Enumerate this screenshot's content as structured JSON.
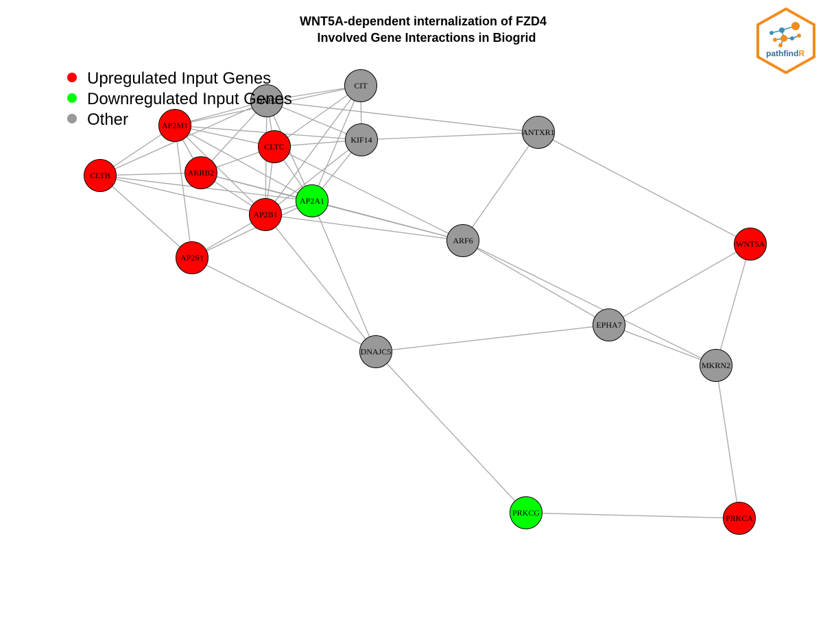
{
  "title": {
    "line1": "WNT5A-dependent internalization of FZD4",
    "line2": "Involved Gene Interactions in Biogrid"
  },
  "legend": [
    {
      "label": "Upregulated Input Genes",
      "color": "#ff0000"
    },
    {
      "label": "Downregulated Input Genes",
      "color": "#00ff00"
    },
    {
      "label": "Other",
      "color": "#999999"
    }
  ],
  "logo": {
    "text_main": "pathfind",
    "text_accent": "R",
    "accent_color": "#f28c1c",
    "main_color": "#2a6f97"
  },
  "colors": {
    "up": "#ff0000",
    "down": "#00ff00",
    "other": "#999999",
    "edge": "#a6a6a6"
  },
  "nodes": [
    {
      "id": "CIT",
      "type": "other"
    },
    {
      "id": "DAB2",
      "type": "other"
    },
    {
      "id": "AP2M1",
      "type": "up"
    },
    {
      "id": "CLTC",
      "type": "up"
    },
    {
      "id": "KIF14",
      "type": "other"
    },
    {
      "id": "ANTXR1",
      "type": "other"
    },
    {
      "id": "CLTB",
      "type": "up"
    },
    {
      "id": "ARRB2",
      "type": "up"
    },
    {
      "id": "AP2A1",
      "type": "down"
    },
    {
      "id": "AP2B1",
      "type": "up"
    },
    {
      "id": "ARF6",
      "type": "other"
    },
    {
      "id": "AP2S1",
      "type": "up"
    },
    {
      "id": "WNT5A",
      "type": "up"
    },
    {
      "id": "EPHA7",
      "type": "other"
    },
    {
      "id": "DNAJC5",
      "type": "other"
    },
    {
      "id": "MKRN2",
      "type": "other"
    },
    {
      "id": "PRKCG",
      "type": "down"
    },
    {
      "id": "PRKCA",
      "type": "up"
    }
  ],
  "edges": [
    [
      "CIT",
      "DAB2"
    ],
    [
      "CIT",
      "AP2M1"
    ],
    [
      "CIT",
      "CLTC"
    ],
    [
      "CIT",
      "KIF14"
    ],
    [
      "CIT",
      "AP2A1"
    ],
    [
      "CIT",
      "AP2B1"
    ],
    [
      "DAB2",
      "AP2M1"
    ],
    [
      "DAB2",
      "CLTB"
    ],
    [
      "DAB2",
      "ARRB2"
    ],
    [
      "DAB2",
      "CLTC"
    ],
    [
      "DAB2",
      "AP2A1"
    ],
    [
      "DAB2",
      "AP2B1"
    ],
    [
      "DAB2",
      "ANTXR1"
    ],
    [
      "DAB2",
      "KIF14"
    ],
    [
      "AP2M1",
      "CLTC"
    ],
    [
      "AP2M1",
      "KIF14"
    ],
    [
      "AP2M1",
      "CLTB"
    ],
    [
      "AP2M1",
      "ARRB2"
    ],
    [
      "AP2M1",
      "AP2A1"
    ],
    [
      "AP2M1",
      "AP2B1"
    ],
    [
      "AP2M1",
      "AP2S1"
    ],
    [
      "CLTC",
      "KIF14"
    ],
    [
      "CLTC",
      "ARRB2"
    ],
    [
      "CLTC",
      "AP2A1"
    ],
    [
      "CLTC",
      "AP2B1"
    ],
    [
      "CLTC",
      "ARF6"
    ],
    [
      "KIF14",
      "ANTXR1"
    ],
    [
      "KIF14",
      "AP2A1"
    ],
    [
      "KIF14",
      "AP2B1"
    ],
    [
      "ANTXR1",
      "ARF6"
    ],
    [
      "ANTXR1",
      "WNT5A"
    ],
    [
      "CLTB",
      "ARRB2"
    ],
    [
      "CLTB",
      "AP2A1"
    ],
    [
      "CLTB",
      "AP2B1"
    ],
    [
      "CLTB",
      "AP2S1"
    ],
    [
      "ARRB2",
      "AP2B1"
    ],
    [
      "ARRB2",
      "AP2A1"
    ],
    [
      "ARRB2",
      "ARF6"
    ],
    [
      "AP2A1",
      "AP2B1"
    ],
    [
      "AP2A1",
      "AP2S1"
    ],
    [
      "AP2A1",
      "ARF6"
    ],
    [
      "AP2A1",
      "DNAJC5"
    ],
    [
      "AP2B1",
      "AP2S1"
    ],
    [
      "AP2B1",
      "ARF6"
    ],
    [
      "AP2B1",
      "DNAJC5"
    ],
    [
      "AP2S1",
      "DNAJC5"
    ],
    [
      "ARF6",
      "EPHA7"
    ],
    [
      "ARF6",
      "MKRN2"
    ],
    [
      "EPHA7",
      "WNT5A"
    ],
    [
      "EPHA7",
      "MKRN2"
    ],
    [
      "EPHA7",
      "DNAJC5"
    ],
    [
      "WNT5A",
      "MKRN2"
    ],
    [
      "DNAJC5",
      "PRKCG"
    ],
    [
      "PRKCG",
      "PRKCA"
    ],
    [
      "MKRN2",
      "PRKCA"
    ]
  ]
}
